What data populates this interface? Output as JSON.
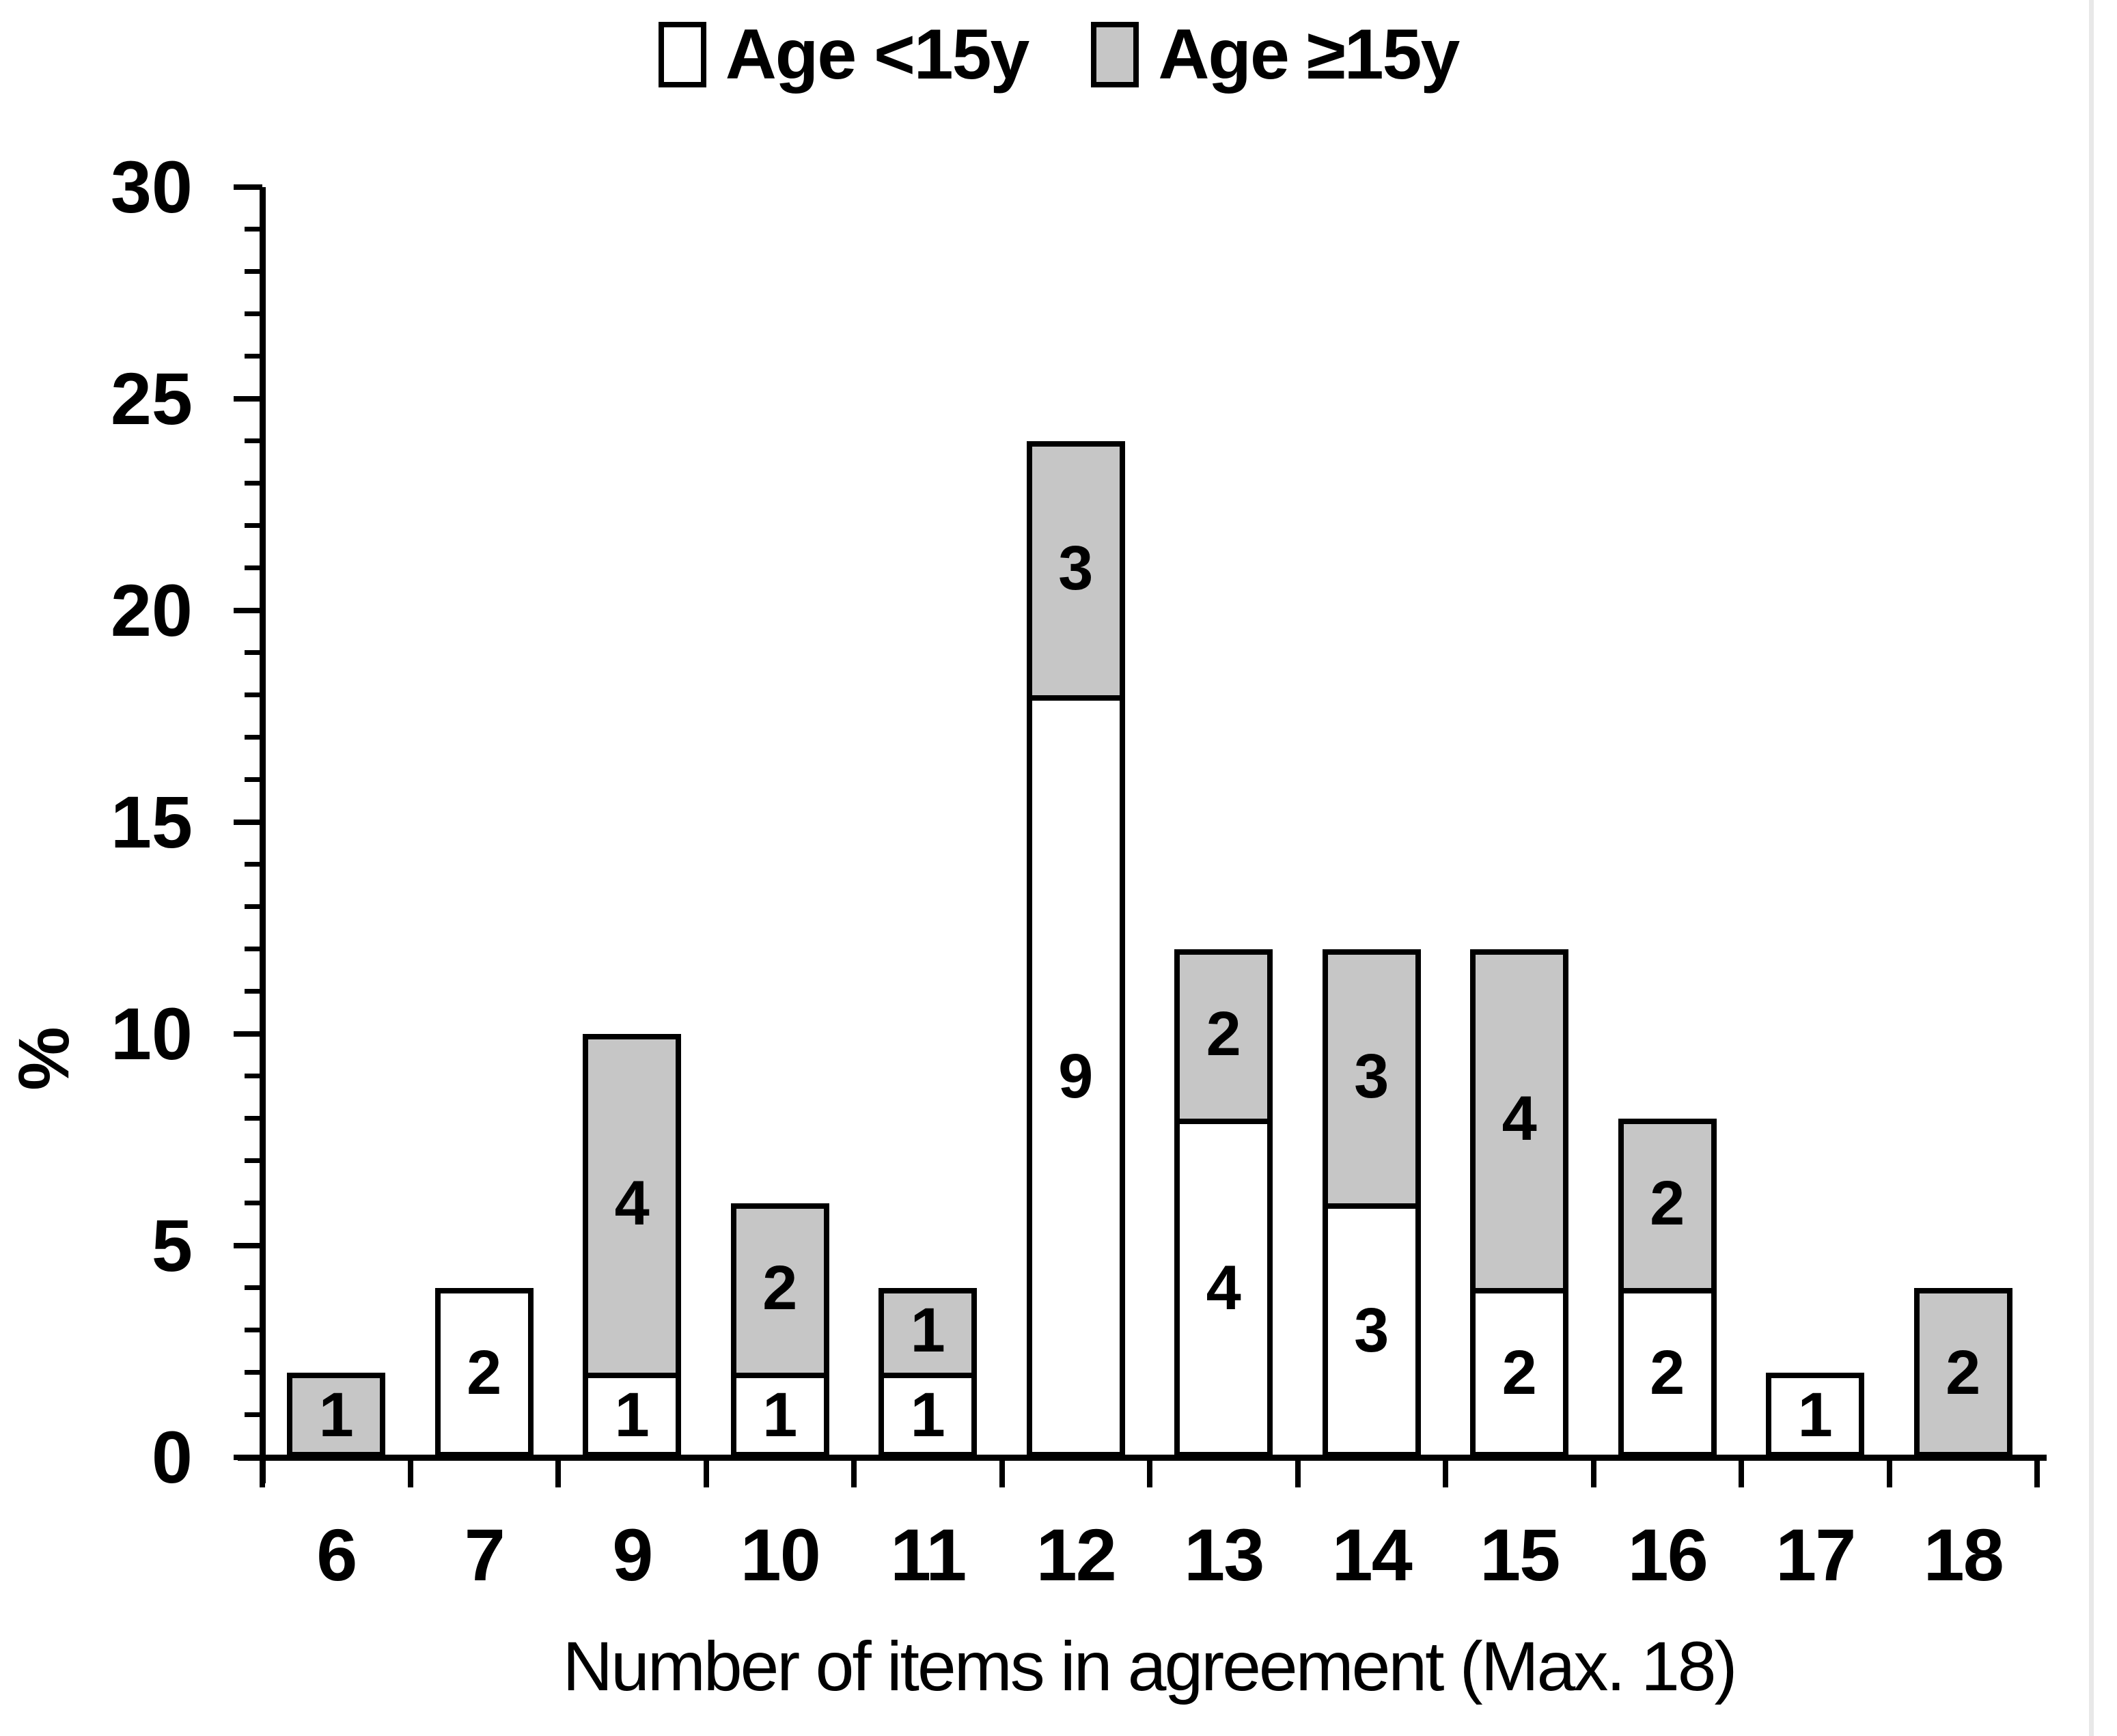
{
  "legend": {
    "items": [
      {
        "label": "Age <15y",
        "fill": "#ffffff",
        "border": "#000000"
      },
      {
        "label": "Age ≥15y",
        "fill": "#c6c6c6",
        "border": "#000000"
      }
    ]
  },
  "y_axis": {
    "title": "%",
    "min": 0,
    "max": 30,
    "major_step": 5,
    "minor_step": 1,
    "major_tick_labels": [
      "0",
      "5",
      "10",
      "15",
      "20",
      "25",
      "30"
    ]
  },
  "x_axis": {
    "title": "Number of items in agreement (Max. 18)",
    "category_labels": [
      "6",
      "7",
      "9",
      "10",
      "11",
      "12",
      "13",
      "14",
      "15",
      "16",
      "17",
      "18"
    ]
  },
  "chart_data": {
    "type": "bar",
    "stacked": true,
    "unit": "percent",
    "title": "",
    "xlabel": "Number of items in agreement (Max. 18)",
    "ylabel": "%",
    "ylim": [
      0,
      30
    ],
    "grid": false,
    "legend_position": "top center",
    "categories": [
      "6",
      "7",
      "9",
      "10",
      "11",
      "12",
      "13",
      "14",
      "15",
      "16",
      "17",
      "18"
    ],
    "series": [
      {
        "name": "Age <15y",
        "fill": "#ffffff",
        "border": "#000000",
        "values_percent": [
          0,
          4,
          2,
          2,
          2,
          18,
          8,
          6,
          4,
          4,
          2,
          0
        ],
        "counts": [
          0,
          2,
          1,
          1,
          1,
          9,
          4,
          3,
          2,
          2,
          1,
          0
        ]
      },
      {
        "name": "Age ≥15y",
        "fill": "#c6c6c6",
        "border": "#000000",
        "values_percent": [
          2,
          0,
          8,
          4,
          2,
          6,
          4,
          6,
          8,
          4,
          0,
          4
        ],
        "counts": [
          1,
          0,
          4,
          2,
          1,
          3,
          2,
          3,
          4,
          2,
          0,
          2
        ]
      }
    ],
    "bar_label_source": "counts"
  }
}
